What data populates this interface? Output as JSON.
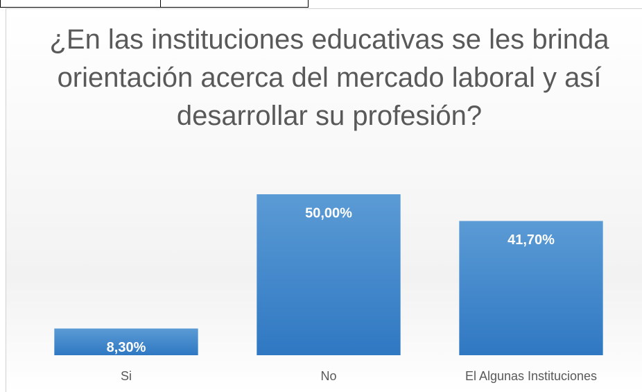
{
  "chart_data": {
    "type": "bar",
    "title": "¿En las instituciones educativas se les brinda orientación acerca del mercado laboral y así desarrollar su profesión?",
    "categories": [
      "Si",
      "No",
      "El Algunas Instituciones"
    ],
    "values": [
      8.3,
      50,
      41.7
    ],
    "value_labels": [
      "8,30%",
      "50,00%",
      "41,70%"
    ],
    "color": "#4a8fd4"
  }
}
